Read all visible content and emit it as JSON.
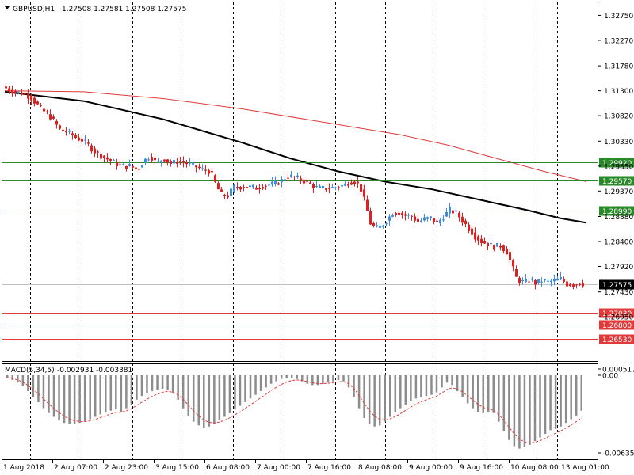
{
  "header": {
    "symbol": "GBPUSD,H1",
    "ohlc": "1.27508 1.27581 1.27508 1.27575"
  },
  "indicator_header": {
    "name": "MACD(5,34,5)",
    "values": "-0.002931 -0.003381"
  },
  "colors": {
    "bull": "#3d8ee0",
    "bear": "#e02020",
    "sma_fast": "#000000",
    "sma_slow": "#e03a3a",
    "support": "#e03a3a",
    "resistance": "#2a8a2a",
    "macd_hist": "#8c8c8c",
    "macd_signal": "#e03a3a",
    "price_marker": "#000000"
  },
  "chart_data": {
    "type": "candlestick",
    "symbol": "GBPUSD",
    "timeframe": "H1",
    "price_axis_ticks": [
      "1.32750",
      "1.32270",
      "1.31780",
      "1.31300",
      "1.30820",
      "1.30330",
      "1.29850",
      "1.29370",
      "1.28880",
      "1.28400",
      "1.27920",
      "1.27430",
      "1.26950"
    ],
    "time_axis_labels": [
      "1 Aug 2018",
      "2 Aug 07:00",
      "2 Aug 23:00",
      "3 Aug 15:00",
      "6 Aug 08:00",
      "7 Aug 00:00",
      "7 Aug 16:00",
      "8 Aug 08:00",
      "9 Aug 00:00",
      "9 Aug 16:00",
      "10 Aug 08:00",
      "13 Aug 01:00"
    ],
    "ylim": [
      1.261,
      1.33
    ],
    "last_price": "1.27575",
    "horizontal_levels": [
      {
        "price": 1.2992,
        "label": "1.29920",
        "kind": "resistance"
      },
      {
        "price": 1.2957,
        "label": "1.29570",
        "kind": "resistance"
      },
      {
        "price": 1.2899,
        "label": "1.28990",
        "kind": "resistance"
      },
      {
        "price": 1.2703,
        "label": "1.27030",
        "kind": "support"
      },
      {
        "price": 1.268,
        "label": "1.26800",
        "kind": "support"
      },
      {
        "price": 1.2653,
        "label": "1.26530",
        "kind": "support"
      }
    ],
    "close_path": [
      [
        0,
        1.3138
      ],
      [
        10,
        1.313
      ],
      [
        25,
        1.3125
      ],
      [
        35,
        1.3118
      ],
      [
        48,
        1.3095
      ],
      [
        60,
        1.308
      ],
      [
        72,
        1.3055
      ],
      [
        82,
        1.305
      ],
      [
        92,
        1.304
      ],
      [
        100,
        1.3035
      ],
      [
        108,
        1.3025
      ],
      [
        118,
        1.301
      ],
      [
        130,
        1.3
      ],
      [
        142,
        1.299
      ],
      [
        150,
        1.2985
      ],
      [
        160,
        1.2985
      ],
      [
        170,
        1.2978
      ],
      [
        178,
        1.2995
      ],
      [
        186,
        1.3005
      ],
      [
        194,
        1.299
      ],
      [
        202,
        1.3
      ],
      [
        212,
        1.299
      ],
      [
        222,
        1.2995
      ],
      [
        232,
        1.299
      ],
      [
        242,
        1.2985
      ],
      [
        252,
        1.2978
      ],
      [
        262,
        1.2975
      ],
      [
        270,
        1.2945
      ],
      [
        276,
        1.293
      ],
      [
        284,
        1.2928
      ],
      [
        292,
        1.2945
      ],
      [
        300,
        1.2945
      ],
      [
        310,
        1.2945
      ],
      [
        320,
        1.2943
      ],
      [
        330,
        1.2948
      ],
      [
        340,
        1.295
      ],
      [
        350,
        1.2955
      ],
      [
        358,
        1.2965
      ],
      [
        366,
        1.2965
      ],
      [
        374,
        1.296
      ],
      [
        382,
        1.2955
      ],
      [
        390,
        1.2948
      ],
      [
        398,
        1.2942
      ],
      [
        406,
        1.2942
      ],
      [
        414,
        1.2943
      ],
      [
        422,
        1.2945
      ],
      [
        430,
        1.2948
      ],
      [
        438,
        1.2955
      ],
      [
        446,
        1.2955
      ],
      [
        452,
        1.294
      ],
      [
        458,
        1.291
      ],
      [
        464,
        1.2875
      ],
      [
        470,
        1.2865
      ],
      [
        476,
        1.2868
      ],
      [
        484,
        1.288
      ],
      [
        492,
        1.2895
      ],
      [
        500,
        1.2895
      ],
      [
        508,
        1.289
      ],
      [
        516,
        1.2888
      ],
      [
        524,
        1.2878
      ],
      [
        532,
        1.2883
      ],
      [
        540,
        1.2885
      ],
      [
        548,
        1.2875
      ],
      [
        556,
        1.2888
      ],
      [
        564,
        1.29
      ],
      [
        572,
        1.2895
      ],
      [
        580,
        1.288
      ],
      [
        588,
        1.2865
      ],
      [
        596,
        1.285
      ],
      [
        604,
        1.284
      ],
      [
        612,
        1.2835
      ],
      [
        620,
        1.283
      ],
      [
        628,
        1.2832
      ],
      [
        636,
        1.282
      ],
      [
        642,
        1.2795
      ],
      [
        648,
        1.277
      ],
      [
        654,
        1.2762
      ],
      [
        660,
        1.2763
      ],
      [
        666,
        1.2768
      ],
      [
        672,
        1.276
      ],
      [
        680,
        1.2765
      ],
      [
        688,
        1.2762
      ],
      [
        696,
        1.2765
      ],
      [
        704,
        1.2768
      ],
      [
        712,
        1.2758
      ],
      [
        720,
        1.2757
      ],
      [
        728,
        1.276
      ],
      [
        734,
        1.2758
      ]
    ],
    "series": [
      {
        "name": "SMA fast",
        "points": [
          [
            0,
            1.3128
          ],
          [
            100,
            1.311
          ],
          [
            200,
            1.3075
          ],
          [
            300,
            1.303
          ],
          [
            360,
            1.3
          ],
          [
            420,
            1.2975
          ],
          [
            480,
            1.2955
          ],
          [
            540,
            1.294
          ],
          [
            600,
            1.292
          ],
          [
            660,
            1.29
          ],
          [
            700,
            1.2885
          ],
          [
            734,
            1.2876
          ]
        ]
      },
      {
        "name": "SMA slow",
        "points": [
          [
            0,
            1.313
          ],
          [
            100,
            1.3128
          ],
          [
            200,
            1.3115
          ],
          [
            300,
            1.3095
          ],
          [
            400,
            1.307
          ],
          [
            500,
            1.3045
          ],
          [
            560,
            1.3025
          ],
          [
            620,
            1.3
          ],
          [
            680,
            1.2975
          ],
          [
            734,
            1.2955
          ]
        ]
      }
    ],
    "macd": {
      "ylim": [
        -0.006352,
        0.000517
      ],
      "tick_labels": [
        "0.000517",
        "0.00",
        "-0.006352"
      ],
      "histogram": [
        -0.0002,
        -0.0004,
        -0.0006,
        -0.0009,
        -0.0013,
        -0.0018,
        -0.0022,
        -0.0027,
        -0.0031,
        -0.0034,
        -0.0037,
        -0.0039,
        -0.004,
        -0.004,
        -0.0039,
        -0.0038,
        -0.0036,
        -0.0034,
        -0.0032,
        -0.003,
        -0.0029,
        -0.0028,
        -0.003,
        -0.0027,
        -0.0024,
        -0.002,
        -0.0017,
        -0.0015,
        -0.0013,
        -0.0012,
        -0.0011,
        -0.0012,
        -0.0015,
        -0.002,
        -0.0027,
        -0.0033,
        -0.0038,
        -0.0041,
        -0.0043,
        -0.0042,
        -0.004,
        -0.0037,
        -0.0034,
        -0.0031,
        -0.0028,
        -0.0025,
        -0.0022,
        -0.0019,
        -0.0016,
        -0.0013,
        -0.001,
        -0.0007,
        -0.0005,
        -0.0003,
        -0.0002,
        -0.0002,
        -0.0003,
        -0.0005,
        -0.0007,
        -0.0008,
        -0.0008,
        -0.0007,
        -0.0006,
        -0.0005,
        -0.0004,
        -0.0005,
        -0.001,
        -0.0018,
        -0.0027,
        -0.0035,
        -0.004,
        -0.0042,
        -0.0041,
        -0.0038,
        -0.0034,
        -0.003,
        -0.0027,
        -0.0024,
        -0.0021,
        -0.0019,
        -0.0018,
        -0.0017,
        -0.0016,
        -0.0014,
        -0.001,
        -0.0006,
        -0.0008,
        -0.0013,
        -0.0018,
        -0.0023,
        -0.0027,
        -0.003,
        -0.0031,
        -0.003,
        -0.0031,
        -0.0038,
        -0.0046,
        -0.0053,
        -0.0058,
        -0.006,
        -0.0059,
        -0.0057,
        -0.0054,
        -0.0051,
        -0.0048,
        -0.0045,
        -0.0044,
        -0.0042,
        -0.0039,
        -0.0036,
        -0.0033,
        -0.0029
      ]
    }
  }
}
